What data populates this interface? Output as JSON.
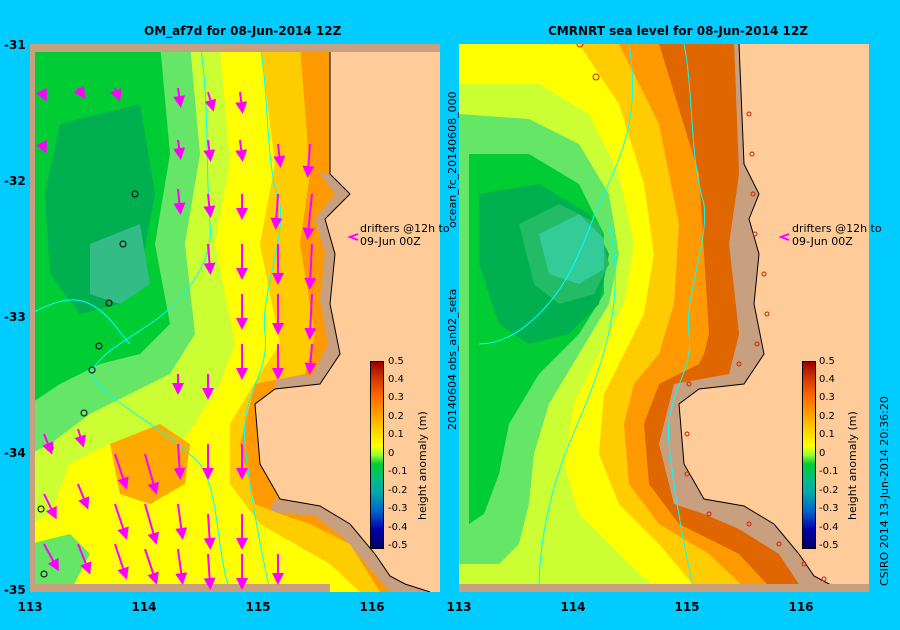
{
  "left_panel": {
    "title": "OM_af7d for 08-Jun-2014 12Z",
    "annotation": [
      "drifters @12h to",
      "09-Jun 00Z"
    ]
  },
  "right_panel": {
    "title": "CMRNRT sea level  for 08-Jun-2014 12Z",
    "annotation": [
      "drifters @12h to",
      "09-Jun 00Z"
    ],
    "side_text_top": "ocean_fc_20140608_000",
    "side_text_bottom": "20140604 obs_an02_seta"
  },
  "lat_labels": [
    "-31",
    "-32",
    "-33",
    "-34",
    "-35"
  ],
  "lon_labels": [
    "113",
    "114",
    "115",
    "116"
  ],
  "colorbar": {
    "label": "height anomaly (m)",
    "ticks": [
      "0.5",
      "0.4",
      "0.3",
      "0.2",
      "0.1",
      "0",
      "-0.1",
      "-0.2",
      "-0.3",
      "-0.4",
      "-0.5"
    ]
  },
  "credit": "CSIRO 2014   13-Jun-2014 20:36:20",
  "colors": {
    "background": "#00CCFF",
    "land": "#FFCC99",
    "shelf": "#C8A080",
    "arrows": "#FF00FF"
  }
}
